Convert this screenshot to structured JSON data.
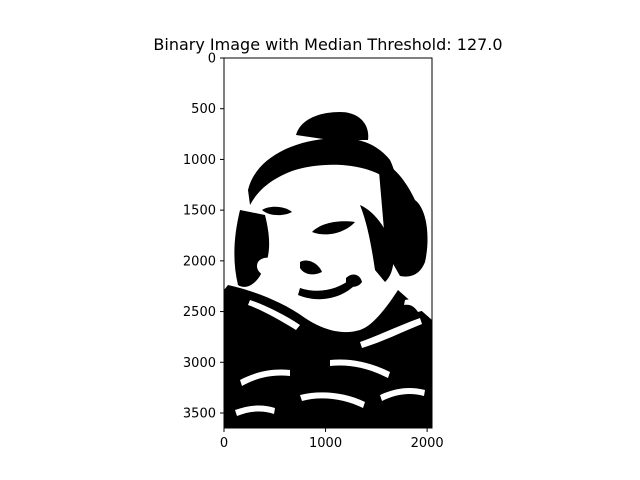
{
  "chart_data": {
    "type": "image",
    "title": "Binary Image with Median Threshold: 127.0",
    "xlabel": "",
    "ylabel": "",
    "xlim": [
      0,
      2048
    ],
    "ylim": [
      3648,
      0
    ],
    "x_ticks": [
      0,
      1000,
      2000
    ],
    "y_ticks": [
      0,
      500,
      1000,
      1500,
      2000,
      2500,
      3000,
      3500
    ],
    "x_tick_labels": [
      "0",
      "1000",
      "2000"
    ],
    "y_tick_labels": [
      "0",
      "500",
      "1000",
      "1500",
      "2000",
      "2500",
      "3000",
      "3500"
    ],
    "colormap": "gray",
    "pixel_values": [
      0,
      1
    ],
    "image_description_colors": {
      "foreground": "#000000",
      "background": "#ffffff"
    },
    "grid": false
  }
}
